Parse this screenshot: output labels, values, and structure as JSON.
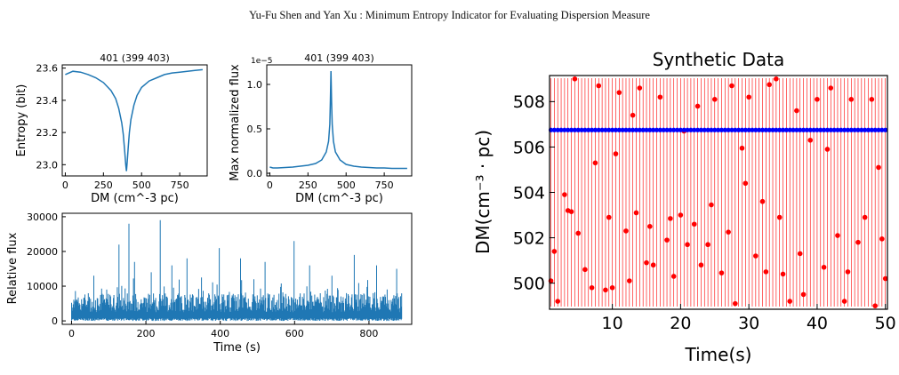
{
  "header": "Yu-Fu Shen and Yan Xu : Minimum Entropy Indicator for Evaluating Dispersion Measure",
  "chart_data": [
    {
      "type": "line",
      "title": "401 (399 403)",
      "xlabel": "DM (cm^-3 pc)",
      "ylabel": "Entropy (bit)",
      "xlim": [
        -20,
        930
      ],
      "ylim": [
        22.93,
        23.62
      ],
      "xticks": [
        "0",
        "250",
        "500",
        "750"
      ],
      "xtick_values": [
        0,
        250,
        500,
        750
      ],
      "yticks": [
        "23.0",
        "23.2",
        "23.4",
        "23.6"
      ],
      "ytick_values": [
        23.0,
        23.2,
        23.4,
        23.6
      ],
      "color": "#1f77b4",
      "x": [
        0,
        50,
        100,
        150,
        200,
        250,
        300,
        330,
        350,
        370,
        380,
        390,
        396,
        401,
        406,
        412,
        420,
        430,
        450,
        470,
        500,
        550,
        600,
        650,
        700,
        750,
        800,
        850,
        900
      ],
      "y": [
        23.56,
        23.58,
        23.575,
        23.56,
        23.54,
        23.51,
        23.46,
        23.41,
        23.35,
        23.26,
        23.19,
        23.08,
        23.0,
        22.96,
        23.02,
        23.1,
        23.2,
        23.28,
        23.37,
        23.43,
        23.48,
        23.52,
        23.54,
        23.56,
        23.57,
        23.575,
        23.58,
        23.585,
        23.59
      ]
    },
    {
      "type": "line",
      "title": "401 (399 403)",
      "xlabel": "DM (cm^-3 pc)",
      "ylabel": "Max normalized flux",
      "y_scale_label": "1e−5",
      "xlim": [
        -20,
        930
      ],
      "ylim": [
        -0.03,
        1.22
      ],
      "xticks": [
        "0",
        "250",
        "500",
        "750"
      ],
      "xtick_values": [
        0,
        250,
        500,
        750
      ],
      "yticks": [
        "0.0",
        "0.5",
        "1.0"
      ],
      "ytick_values": [
        0.0,
        0.5,
        1.0
      ],
      "color": "#1f77b4",
      "x": [
        0,
        20,
        50,
        100,
        150,
        200,
        250,
        300,
        340,
        370,
        385,
        393,
        397,
        401,
        405,
        409,
        417,
        430,
        460,
        500,
        550,
        600,
        650,
        700,
        750,
        800,
        850,
        900
      ],
      "y": [
        0.07,
        0.06,
        0.06,
        0.065,
        0.07,
        0.08,
        0.09,
        0.11,
        0.15,
        0.24,
        0.36,
        0.55,
        0.8,
        1.15,
        0.8,
        0.55,
        0.36,
        0.24,
        0.15,
        0.1,
        0.08,
        0.07,
        0.065,
        0.06,
        0.06,
        0.055,
        0.055,
        0.055
      ]
    },
    {
      "type": "line",
      "xlabel": "Time (s)",
      "ylabel": "Relative flux",
      "xlim": [
        -25,
        915
      ],
      "ylim": [
        -1000,
        31000
      ],
      "xticks": [
        "0",
        "200",
        "400",
        "600",
        "800"
      ],
      "xtick_values": [
        0,
        200,
        400,
        600,
        800
      ],
      "yticks": [
        "0",
        "10000",
        "20000",
        "30000"
      ],
      "ytick_values": [
        0,
        10000,
        20000,
        30000
      ],
      "color": "#1f77b4",
      "peaks": [
        {
          "t": 128,
          "v": 22000
        },
        {
          "t": 155,
          "v": 28000
        },
        {
          "t": 170,
          "v": 17000
        },
        {
          "t": 238,
          "v": 29000
        },
        {
          "t": 270,
          "v": 16000
        },
        {
          "t": 310,
          "v": 18000
        },
        {
          "t": 398,
          "v": 21000
        },
        {
          "t": 455,
          "v": 18000
        },
        {
          "t": 520,
          "v": 17000
        },
        {
          "t": 598,
          "v": 23000
        },
        {
          "t": 640,
          "v": 16000
        },
        {
          "t": 760,
          "v": 19000
        },
        {
          "t": 820,
          "v": 16000
        },
        {
          "t": 875,
          "v": 15000
        },
        {
          "t": 60,
          "v": 13000
        },
        {
          "t": 215,
          "v": 14000
        },
        {
          "t": 350,
          "v": 12500
        },
        {
          "t": 490,
          "v": 12000
        },
        {
          "t": 700,
          "v": 13000
        }
      ]
    },
    {
      "type": "scatter",
      "title": "Synthetic Data",
      "xlabel": "Time(s)",
      "ylabel": "DM(cm⁻³ · pc)",
      "xlim": [
        0.8,
        50.3
      ],
      "ylim": [
        498.85,
        509.15
      ],
      "xticks": [
        "10",
        "20",
        "30",
        "40",
        "50"
      ],
      "xtick_values": [
        10,
        20,
        30,
        40,
        50
      ],
      "yticks": [
        "500",
        "502",
        "504",
        "506",
        "508"
      ],
      "ytick_values": [
        500,
        502,
        504,
        506,
        508
      ],
      "series": [
        {
          "color": "#0000ff",
          "constant_y": 506.75
        },
        {
          "color": "#ff0000",
          "x": [
            1,
            1.5,
            2,
            3,
            3.5,
            4,
            4.5,
            5,
            6,
            7,
            7.5,
            8,
            9,
            9.5,
            10,
            10.5,
            11,
            12,
            12.5,
            13,
            13.5,
            14,
            15,
            15.5,
            16,
            17,
            18,
            18.5,
            19,
            20,
            20.5,
            21,
            22,
            22.5,
            23,
            24,
            24.5,
            25,
            26,
            27,
            27.5,
            28,
            29,
            29.5,
            30,
            31,
            32,
            32.5,
            33,
            34,
            34.5,
            35,
            36,
            37,
            37.5,
            38,
            39,
            40,
            41,
            41.5,
            42,
            43,
            44,
            44.5,
            45,
            46,
            47,
            48,
            48.5,
            49,
            49.5,
            50
          ],
          "y": [
            500.1,
            501.4,
            499.2,
            503.9,
            503.2,
            503.15,
            509.0,
            502.2,
            500.6,
            499.8,
            505.3,
            508.7,
            499.7,
            502.9,
            499.8,
            505.7,
            508.4,
            502.3,
            500.1,
            507.4,
            503.1,
            508.6,
            500.9,
            502.5,
            500.8,
            508.2,
            501.9,
            502.85,
            500.3,
            503.0,
            506.7,
            501.7,
            502.6,
            507.8,
            500.8,
            501.7,
            503.45,
            508.1,
            500.45,
            502.25,
            508.7,
            499.1,
            505.95,
            504.4,
            508.2,
            501.2,
            503.6,
            500.5,
            508.75,
            509.0,
            502.9,
            500.4,
            499.2,
            507.6,
            501.3,
            499.5,
            506.3,
            508.1,
            500.7,
            505.9,
            508.6,
            502.1,
            499.2,
            500.5,
            508.1,
            501.8,
            502.9,
            508.1,
            499.0,
            505.1,
            501.95,
            500.2
          ]
        }
      ]
    }
  ]
}
